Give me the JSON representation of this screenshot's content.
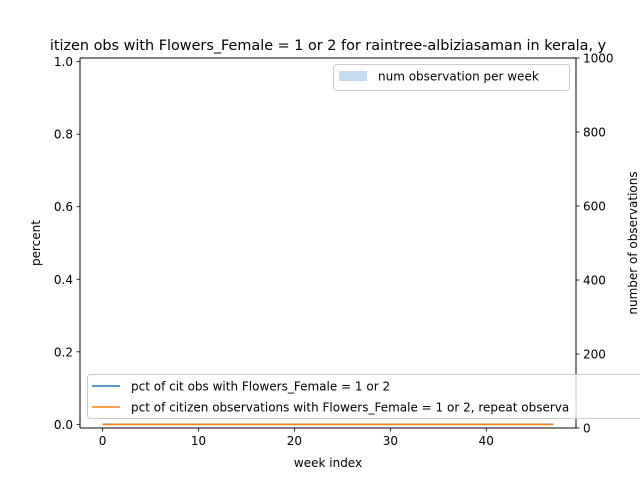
{
  "chart_data": {
    "type": "line",
    "title": "itizen obs with Flowers_Female = 1 or 2 for raintree-albiziasaman in kerala, y",
    "xlabel": "week index",
    "ylabel": "percent",
    "y2label": "number of observations",
    "xlim": [
      -2.35,
      49.35
    ],
    "ylim": [
      -0.01,
      1.01
    ],
    "y2lim": [
      0,
      1000
    ],
    "x_ticks": [
      0,
      10,
      20,
      30,
      40
    ],
    "x_tick_labels": [
      "0",
      "10",
      "20",
      "30",
      "40"
    ],
    "y_ticks": [
      0.0,
      0.2,
      0.4,
      0.6,
      0.8,
      1.0
    ],
    "y_tick_labels": [
      "0.0",
      "0.2",
      "0.4",
      "0.6",
      "0.8",
      "1.0"
    ],
    "y2_ticks": [
      0,
      200,
      400,
      600,
      800,
      1000
    ],
    "y2_tick_labels": [
      "0",
      "200",
      "400",
      "600",
      "800",
      "1000"
    ],
    "grid": false,
    "series": [
      {
        "name": "pct of cit obs with Flowers_Female = 1 or 2",
        "color": "#1f77b4",
        "axis": "left",
        "x": [
          0,
          47
        ],
        "values": [
          0,
          0
        ]
      },
      {
        "name": "pct of citizen observations with Flowers_Female = 1 or 2, repeat observa",
        "color": "#ff7f0e",
        "axis": "left",
        "x": [
          0,
          47
        ],
        "values": [
          0,
          0
        ]
      }
    ],
    "bar_series": {
      "name": "num observation per week",
      "color": "#c6dbef",
      "axis": "right",
      "x": [],
      "values": []
    },
    "legends": {
      "bars": "top-right",
      "lines": "lower-left"
    }
  }
}
